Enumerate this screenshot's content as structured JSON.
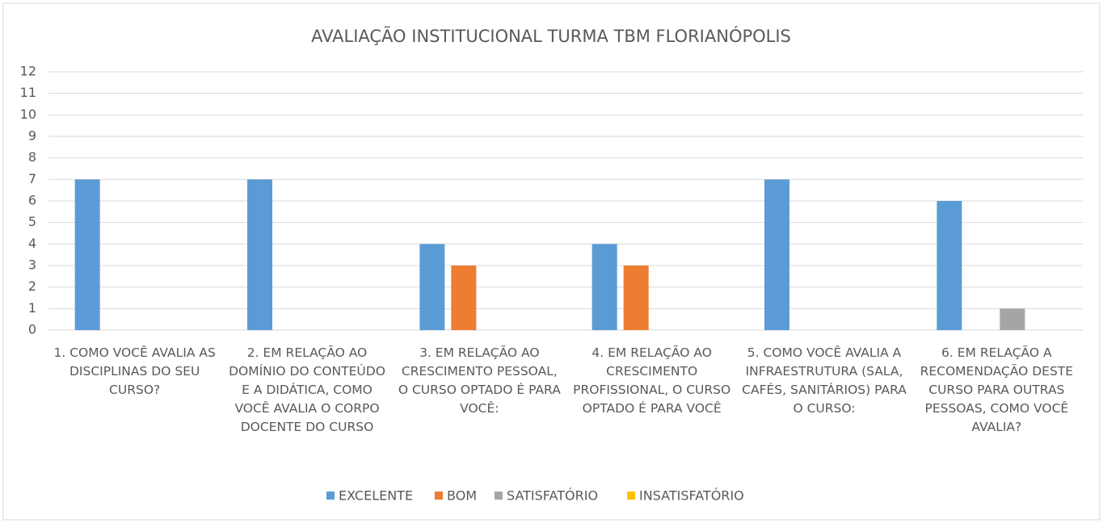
{
  "chart_data": {
    "type": "bar",
    "title": "AVALIAÇÃO INSTITUCIONAL TURMA TBM FLORIANÓPOLIS",
    "categories": [
      "1. COMO VOCÊ AVALIA AS DISCIPLINAS DO SEU CURSO?",
      "2. EM RELAÇÃO AO DOMÍNIO DO CONTEÚDO E A DIDÁTICA, COMO VOCÊ AVALIA O CORPO DOCENTE DO CURSO",
      "3. EM RELAÇÃO AO CRESCIMENTO PESSOAL, O CURSO OPTADO É PARA VOCÊ:",
      "4. EM RELAÇÃO AO CRESCIMENTO PROFISSIONAL, O CURSO OPTADO É PARA VOCÊ",
      "5. COMO VOCÊ AVALIA A INFRAESTRUTURA (SALA, CAFÉS, SANITÁRIOS) PARA O CURSO:",
      "6. EM RELAÇÃO A RECOMENDAÇÃO DESTE CURSO PARA OUTRAS PESSOAS, COMO VOCÊ AVALIA?"
    ],
    "series": [
      {
        "name": "EXCELENTE",
        "color": "#5b9bd5",
        "values": [
          7,
          7,
          4,
          4,
          7,
          6
        ]
      },
      {
        "name": "BOM",
        "color": "#ed7d31",
        "values": [
          0,
          0,
          3,
          3,
          0,
          0
        ]
      },
      {
        "name": "SATISFATÓRIO",
        "color": "#a5a5a5",
        "values": [
          0,
          0,
          0,
          0,
          0,
          1
        ]
      },
      {
        "name": "INSATISFATÓRIO",
        "color": "#ffc000",
        "values": [
          0,
          0,
          0,
          0,
          0,
          0
        ]
      }
    ],
    "ylim": [
      0,
      12
    ],
    "yticks": [
      0,
      1,
      2,
      3,
      4,
      5,
      6,
      7,
      8,
      9,
      10,
      11,
      12
    ],
    "grid": true,
    "legend": "bottom"
  }
}
